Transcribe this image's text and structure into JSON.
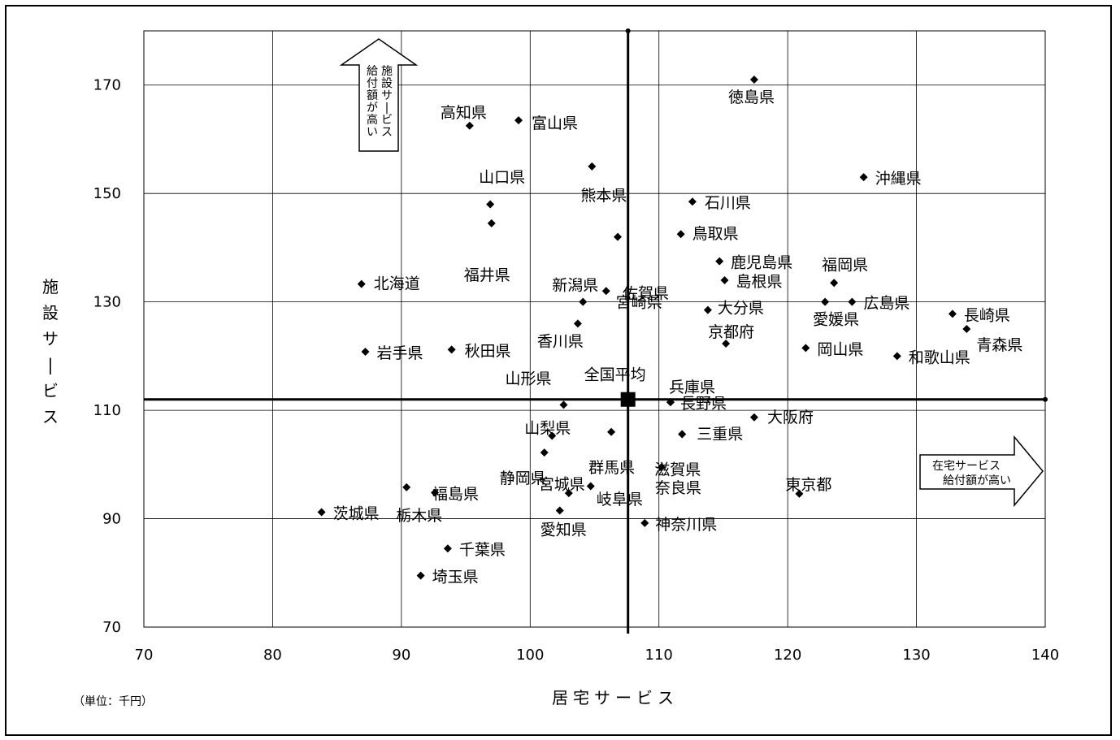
{
  "chart_data": {
    "type": "scatter",
    "xlabel": "居宅サービス",
    "ylabel": "施設サービス",
    "unit_note": "（単位：千円）",
    "xlim": [
      70,
      140
    ],
    "ylim": [
      70,
      180
    ],
    "x_ticks": [
      70,
      80,
      90,
      100,
      110,
      120,
      130,
      140
    ],
    "y_ticks": [
      70,
      90,
      110,
      130,
      150,
      170
    ],
    "grid": true,
    "average": {
      "name": "全国平均",
      "x": 107.6,
      "y": 112
    },
    "annotations": {
      "up_arrow": "施設サービス給付額が高い",
      "right_arrow_line1": "在宅サービス",
      "right_arrow_line2": "給付額が高い"
    },
    "points": [
      {
        "name": "徳島県",
        "x": 117.4,
        "y": 171
      },
      {
        "name": "高知県",
        "x": 95.3,
        "y": 162.5
      },
      {
        "name": "富山県",
        "x": 99.1,
        "y": 163.5
      },
      {
        "name": "熊本県",
        "x": 104.8,
        "y": 155
      },
      {
        "name": "沖縄県",
        "x": 125.9,
        "y": 153
      },
      {
        "name": "山口県",
        "x": 96.9,
        "y": 148
      },
      {
        "name": "石川県",
        "x": 112.6,
        "y": 148.5
      },
      {
        "name": "福井県",
        "x": 97.0,
        "y": 144.5
      },
      {
        "name": "佐賀県",
        "x": 106.8,
        "y": 142
      },
      {
        "name": "鳥取県",
        "x": 111.7,
        "y": 142.5
      },
      {
        "name": "鹿児島県",
        "x": 114.7,
        "y": 137.5
      },
      {
        "name": "福岡県",
        "x": 123.6,
        "y": 133.5
      },
      {
        "name": "北海道",
        "x": 86.9,
        "y": 133.3
      },
      {
        "name": "新潟県",
        "x": 104.1,
        "y": 130
      },
      {
        "name": "宮崎県",
        "x": 105.9,
        "y": 132
      },
      {
        "name": "島根県",
        "x": 115.1,
        "y": 134
      },
      {
        "name": "広島県",
        "x": 125.0,
        "y": 130
      },
      {
        "name": "愛媛県",
        "x": 122.9,
        "y": 130
      },
      {
        "name": "大分県",
        "x": 113.8,
        "y": 128.5
      },
      {
        "name": "長崎県",
        "x": 132.8,
        "y": 127.8
      },
      {
        "name": "香川県",
        "x": 103.7,
        "y": 126
      },
      {
        "name": "青森県",
        "x": 133.9,
        "y": 125
      },
      {
        "name": "京都府",
        "x": 115.2,
        "y": 122.3
      },
      {
        "name": "岡山県",
        "x": 121.4,
        "y": 121.5
      },
      {
        "name": "岩手県",
        "x": 87.2,
        "y": 120.8
      },
      {
        "name": "秋田県",
        "x": 93.9,
        "y": 121.2
      },
      {
        "name": "和歌山県",
        "x": 128.5,
        "y": 120
      },
      {
        "name": "山形県",
        "x": 102.6,
        "y": 111
      },
      {
        "name": "兵庫県",
        "x": 110.9,
        "y": 111.5
      },
      {
        "name": "長野県",
        "x": 110.9,
        "y": 111.5
      },
      {
        "name": "大阪府",
        "x": 117.4,
        "y": 108.7
      },
      {
        "name": "山梨県",
        "x": 101.7,
        "y": 105.3
      },
      {
        "name": "群馬県",
        "x": 106.3,
        "y": 106
      },
      {
        "name": "三重県",
        "x": 111.8,
        "y": 105.6
      },
      {
        "name": "滋賀県",
        "x": 111.8,
        "y": 105.6
      },
      {
        "name": "静岡県",
        "x": 101.1,
        "y": 102.2
      },
      {
        "name": "東京都",
        "x": 120.9,
        "y": 94.6
      },
      {
        "name": "奈良県",
        "x": 110.2,
        "y": 99.5
      },
      {
        "name": "宮城県",
        "x": 104.7,
        "y": 96
      },
      {
        "name": "岐阜県",
        "x": 103.0,
        "y": 94.7
      },
      {
        "name": "福島県",
        "x": 92.6,
        "y": 94.8
      },
      {
        "name": "茨城県",
        "x": 83.8,
        "y": 91.2
      },
      {
        "name": "栃木県",
        "x": 90.4,
        "y": 95.8
      },
      {
        "name": "愛知県",
        "x": 102.3,
        "y": 91.5
      },
      {
        "name": "神奈川県",
        "x": 108.9,
        "y": 89.2
      },
      {
        "name": "千葉県",
        "x": 93.6,
        "y": 84.5
      },
      {
        "name": "埼玉県",
        "x": 91.5,
        "y": 79.5
      }
    ]
  }
}
